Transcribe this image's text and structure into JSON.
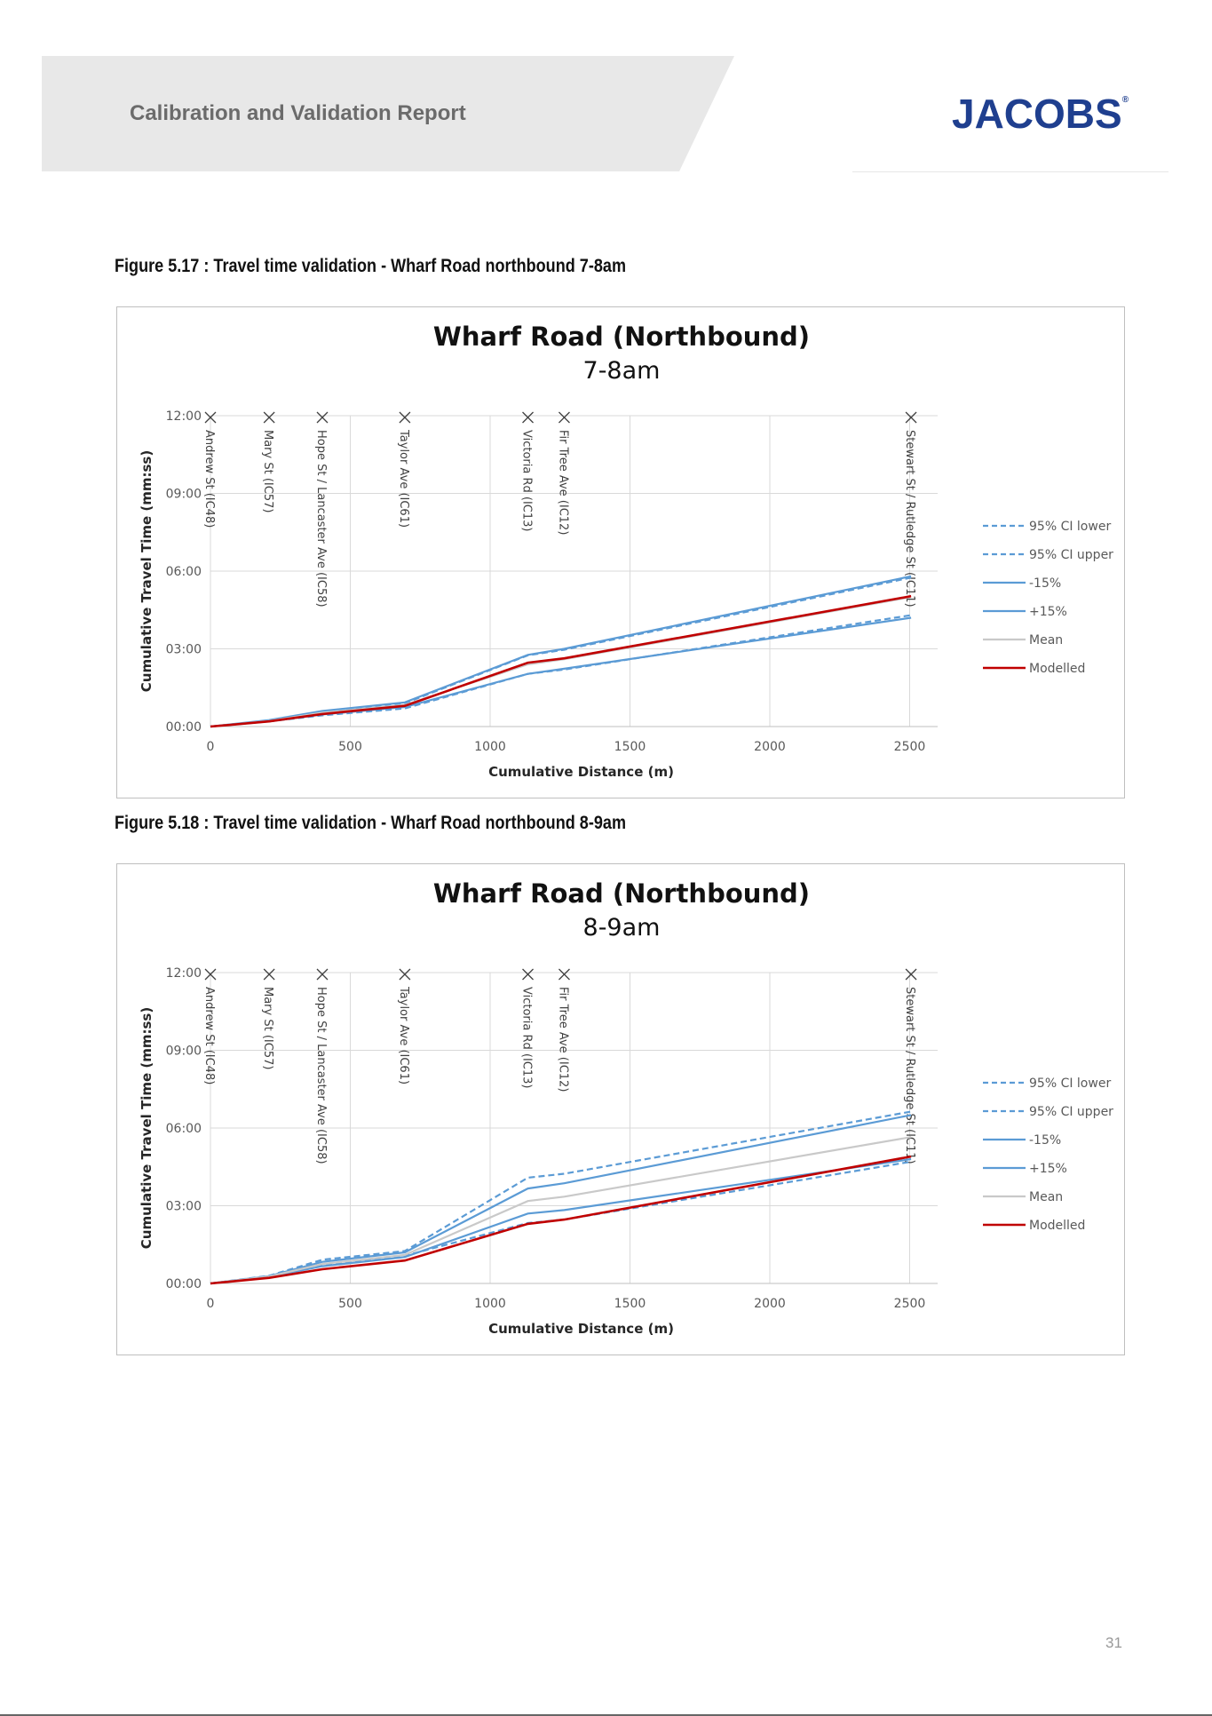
{
  "header": {
    "title": "Calibration and Validation Report",
    "logo": "JACOBS",
    "logo_mark": "®"
  },
  "page_number": "31",
  "captions": [
    "Figure 5.17 : Travel time validation - Wharf Road northbound 7-8am",
    "Figure 5.18 : Travel time validation - Wharf Road northbound 8-9am"
  ],
  "colors": {
    "ci": "#5b9bd5",
    "pct": "#5b9bd5",
    "mean": "#c9c9c9",
    "modelled": "#c00000",
    "grid": "#d9d9d9"
  },
  "chart_data": [
    {
      "type": "line",
      "title": "Wharf Road (Northbound)",
      "subtitle": "7-8am",
      "xlabel": "Cumulative Distance (m)",
      "ylabel": "Cumulative Travel Time (mm:ss)",
      "xlim": [
        0,
        2600
      ],
      "ylim": [
        0,
        720
      ],
      "x_ticks": [
        0,
        500,
        1000,
        1500,
        2000,
        2500
      ],
      "y_ticks": [
        0,
        180,
        360,
        540,
        720
      ],
      "y_tick_labels": [
        "00:00",
        "03:00",
        "06:00",
        "09:00",
        "12:00"
      ],
      "grid": true,
      "legend_position": "right",
      "markers": [
        {
          "x": 0,
          "label": "Andrew St (IC48)"
        },
        {
          "x": 210,
          "label": "Mary St (IC57)"
        },
        {
          "x": 400,
          "label": "Hope St / Lancaster Ave (IC58)"
        },
        {
          "x": 695,
          "label": "Taylor Ave (IC61)"
        },
        {
          "x": 1135,
          "label": "Victoria Rd (IC13)"
        },
        {
          "x": 1265,
          "label": "Fir Tree Ave (IC12)"
        },
        {
          "x": 2505,
          "label": "Stewart St / Rutledge St (IC11)"
        }
      ],
      "x": [
        0,
        210,
        400,
        695,
        1135,
        1265,
        2505
      ],
      "series": [
        {
          "name": "95% CI lower",
          "style": "dashed",
          "color": "#5b9bd5",
          "values": [
            0,
            12,
            26,
            42,
            122,
            132,
            258
          ]
        },
        {
          "name": "95% CI upper",
          "style": "dashed",
          "color": "#5b9bd5",
          "values": [
            0,
            14,
            33,
            54,
            165,
            178,
            345
          ]
        },
        {
          "name": "-15%",
          "style": "solid",
          "color": "#5b9bd5",
          "values": [
            0,
            12,
            28,
            45,
            122,
            134,
            252
          ]
        },
        {
          "name": "+15%",
          "style": "solid",
          "color": "#5b9bd5",
          "values": [
            0,
            15,
            36,
            56,
            166,
            180,
            348
          ]
        },
        {
          "name": "Mean",
          "style": "solid",
          "color": "#c9c9c9",
          "values": [
            0,
            13,
            32,
            50,
            144,
            156,
            300
          ]
        },
        {
          "name": "Modelled",
          "style": "solid",
          "color": "#c00000",
          "values": [
            0,
            12,
            29,
            48,
            148,
            158,
            302
          ]
        }
      ]
    },
    {
      "type": "line",
      "title": "Wharf Road (Northbound)",
      "subtitle": "8-9am",
      "xlabel": "Cumulative Distance (m)",
      "ylabel": "Cumulative Travel Time (mm:ss)",
      "xlim": [
        0,
        2600
      ],
      "ylim": [
        0,
        720
      ],
      "x_ticks": [
        0,
        500,
        1000,
        1500,
        2000,
        2500
      ],
      "y_ticks": [
        0,
        180,
        360,
        540,
        720
      ],
      "y_tick_labels": [
        "00:00",
        "03:00",
        "06:00",
        "09:00",
        "12:00"
      ],
      "grid": true,
      "legend_position": "right",
      "markers": [
        {
          "x": 0,
          "label": "Andrew St (IC48)"
        },
        {
          "x": 210,
          "label": "Mary St (IC57)"
        },
        {
          "x": 400,
          "label": "Hope St / Lancaster Ave (IC58)"
        },
        {
          "x": 695,
          "label": "Taylor Ave (IC61)"
        },
        {
          "x": 1135,
          "label": "Victoria Rd (IC13)"
        },
        {
          "x": 1265,
          "label": "Fir Tree Ave (IC12)"
        },
        {
          "x": 2505,
          "label": "Stewart St / Rutledge St (IC11)"
        }
      ],
      "x": [
        0,
        210,
        400,
        695,
        1135,
        1265,
        2505
      ],
      "series": [
        {
          "name": "95% CI lower",
          "style": "dashed",
          "color": "#5b9bd5",
          "values": [
            0,
            14,
            42,
            64,
            140,
            148,
            282
          ]
        },
        {
          "name": "95% CI upper",
          "style": "dashed",
          "color": "#5b9bd5",
          "values": [
            0,
            18,
            55,
            75,
            245,
            254,
            398
          ]
        },
        {
          "name": "-15%",
          "style": "solid",
          "color": "#5b9bd5",
          "values": [
            0,
            15,
            40,
            61,
            162,
            170,
            288
          ]
        },
        {
          "name": "+15%",
          "style": "solid",
          "color": "#5b9bd5",
          "values": [
            0,
            17,
            50,
            72,
            220,
            232,
            390
          ]
        },
        {
          "name": "Mean",
          "style": "solid",
          "color": "#c9c9c9",
          "values": [
            0,
            16,
            45,
            66,
            191,
            201,
            339
          ]
        },
        {
          "name": "Modelled",
          "style": "solid",
          "color": "#c00000",
          "values": [
            0,
            13,
            33,
            53,
            138,
            148,
            294
          ]
        }
      ]
    }
  ]
}
